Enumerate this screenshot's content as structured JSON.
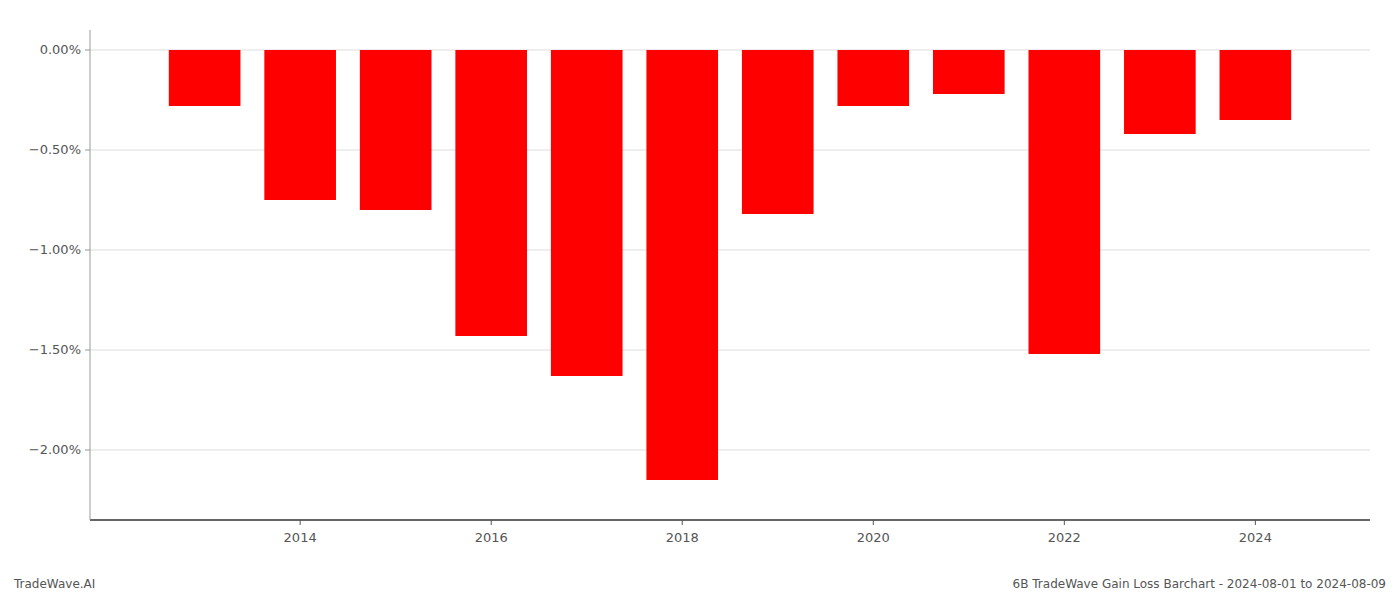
{
  "chart_data": {
    "type": "bar",
    "title": "6B TradeWave Gain Loss Barchart - 2024-08-01 to 2024-08-09",
    "annotations": [
      "TradeWave.AI"
    ],
    "x": [
      2013,
      2014,
      2015,
      2016,
      2017,
      2018,
      2019,
      2020,
      2021,
      2022,
      2023,
      2024
    ],
    "values": [
      -0.28,
      -0.75,
      -0.8,
      -1.43,
      -1.63,
      -2.15,
      -0.82,
      -0.28,
      -0.22,
      -1.52,
      -0.42,
      -0.35
    ],
    "color": "#ff0000",
    "xlim": [
      2011.8,
      2025.2
    ],
    "xticks": [
      2014,
      2016,
      2018,
      2020,
      2022,
      2024
    ],
    "ylim": [
      -2.35,
      0.1
    ],
    "yticks": [
      {
        "value": 0.0,
        "label": "0.00%"
      },
      {
        "value": -0.5,
        "label": "−0.50%"
      },
      {
        "value": -1.0,
        "label": "−1.00%"
      },
      {
        "value": -1.5,
        "label": "−1.50%"
      },
      {
        "value": -2.0,
        "label": "−2.00%"
      }
    ],
    "grid": true
  }
}
